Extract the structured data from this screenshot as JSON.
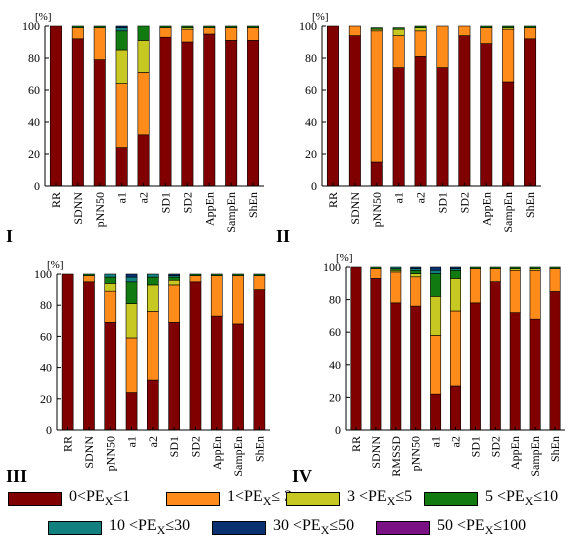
{
  "colors": [
    "#800000",
    "#ff8c1a",
    "#c8c823",
    "#117a11",
    "#138080",
    "#0b3170",
    "#7b1283"
  ],
  "legend": [
    {
      "pre": "0<PE",
      "sub": "X",
      "post": "≤1"
    },
    {
      "pre": "1<PE",
      "sub": "X",
      "post": "≤ 3"
    },
    {
      "pre": "3 <PE",
      "sub": "X",
      "post": "≤5"
    },
    {
      "pre": "5 <PE",
      "sub": "X",
      "post": "≤10"
    },
    {
      "pre": "10 <PE",
      "sub": "X",
      "post": "≤30"
    },
    {
      "pre": "30 <PE",
      "sub": "X",
      "post": "≤50"
    },
    {
      "pre": "50 <PE",
      "sub": "X",
      "post": "≤100"
    }
  ],
  "panel_labels": [
    "I",
    "II",
    "III",
    "IV"
  ],
  "chart_data": [
    {
      "type": "bar",
      "stacked": true,
      "unit_label": "[%]",
      "ylim": [
        0,
        100
      ],
      "yticks": [
        0,
        20,
        40,
        60,
        80,
        100
      ],
      "categories": [
        "RR",
        "SDNN",
        "pNN50",
        "a1",
        "a2",
        "SD1",
        "SD2",
        "AppEn",
        "SampEn",
        "ShEn"
      ],
      "series": [
        {
          "values": [
            100,
            92,
            79,
            24,
            32,
            93,
            90,
            95,
            91,
            91
          ]
        },
        {
          "values": [
            0,
            7,
            20,
            40,
            39,
            6,
            8,
            4,
            8,
            8
          ]
        },
        {
          "values": [
            0,
            0,
            0,
            21,
            20,
            0,
            1,
            0,
            0,
            0
          ]
        },
        {
          "values": [
            0,
            1,
            1,
            12,
            9,
            1,
            1,
            1,
            1,
            1
          ]
        },
        {
          "values": [
            0,
            0,
            0,
            2,
            0,
            0,
            0,
            0,
            0,
            0
          ]
        },
        {
          "values": [
            0,
            0,
            0,
            1,
            0,
            0,
            0,
            0,
            0,
            0
          ]
        },
        {
          "values": [
            0,
            0,
            0,
            0,
            0,
            0,
            0,
            0,
            0,
            0
          ]
        }
      ]
    },
    {
      "type": "bar",
      "stacked": true,
      "unit_label": "[%]",
      "ylim": [
        0,
        100
      ],
      "yticks": [
        0,
        20,
        40,
        60,
        80,
        100
      ],
      "categories": [
        "RR",
        "SDNN",
        "pNN50",
        "a1",
        "a2",
        "SD1",
        "SD2",
        "AppEn",
        "SampEn",
        "ShEn"
      ],
      "series": [
        {
          "values": [
            100,
            94,
            15,
            74,
            81,
            74,
            94,
            89,
            65,
            92
          ]
        },
        {
          "values": [
            0,
            6,
            82,
            20,
            16,
            26,
            6,
            10,
            33,
            7
          ]
        },
        {
          "values": [
            0,
            0,
            1,
            4,
            2,
            0,
            0,
            0,
            1,
            0
          ]
        },
        {
          "values": [
            0,
            0,
            1,
            1,
            1,
            0,
            0,
            1,
            1,
            1
          ]
        },
        {
          "values": [
            0,
            0,
            0,
            0,
            0,
            0,
            0,
            0,
            0,
            0
          ]
        },
        {
          "values": [
            0,
            0,
            0,
            0,
            0,
            0,
            0,
            0,
            0,
            0
          ]
        },
        {
          "values": [
            0,
            0,
            0,
            0,
            0,
            0,
            0,
            0,
            0,
            0
          ]
        }
      ]
    },
    {
      "type": "bar",
      "stacked": true,
      "unit_label": "[%]",
      "ylim": [
        0,
        100
      ],
      "yticks": [
        0,
        20,
        40,
        60,
        80,
        100
      ],
      "categories": [
        "RR",
        "SDNN",
        "pNN50",
        "a1",
        "a2",
        "SD1",
        "SD2",
        "AppEn",
        "SampEn",
        "ShEn"
      ],
      "series": [
        {
          "values": [
            100,
            95,
            69,
            24,
            32,
            69,
            95,
            73,
            68,
            90
          ]
        },
        {
          "values": [
            0,
            4,
            20,
            35,
            44,
            24,
            4,
            26,
            31,
            9
          ]
        },
        {
          "values": [
            0,
            0,
            5,
            22,
            17,
            3,
            0,
            0,
            0,
            0
          ]
        },
        {
          "values": [
            0,
            1,
            4,
            14,
            5,
            2,
            1,
            1,
            1,
            1
          ]
        },
        {
          "values": [
            0,
            0,
            2,
            3,
            2,
            1,
            0,
            0,
            0,
            0
          ]
        },
        {
          "values": [
            0,
            0,
            0,
            2,
            0,
            1,
            0,
            0,
            0,
            0
          ]
        },
        {
          "values": [
            0,
            0,
            0,
            0,
            0,
            0,
            0,
            0,
            0,
            0
          ]
        }
      ]
    },
    {
      "type": "bar",
      "stacked": true,
      "unit_label": "[%]",
      "ylim": [
        0,
        100
      ],
      "yticks": [
        0,
        20,
        40,
        60,
        80,
        100
      ],
      "categories": [
        "RR",
        "SDNN",
        "RMSSD",
        "pNN50",
        "a1",
        "a2",
        "SD1",
        "SD2",
        "AppEn",
        "SampEn",
        "ShEn"
      ],
      "series": [
        {
          "values": [
            100,
            93,
            78,
            76,
            22,
            27,
            78,
            91,
            72,
            68,
            85
          ]
        },
        {
          "values": [
            0,
            6,
            19,
            18,
            36,
            46,
            21,
            8,
            26,
            30,
            14
          ]
        },
        {
          "values": [
            0,
            0,
            1,
            2,
            24,
            20,
            0,
            0,
            1,
            1,
            0
          ]
        },
        {
          "values": [
            0,
            1,
            1,
            2,
            14,
            5,
            1,
            1,
            1,
            1,
            1
          ]
        },
        {
          "values": [
            0,
            0,
            1,
            1,
            2,
            1,
            0,
            0,
            0,
            0,
            0
          ]
        },
        {
          "values": [
            0,
            0,
            0,
            1,
            2,
            1,
            0,
            0,
            0,
            0,
            0
          ]
        },
        {
          "values": [
            0,
            0,
            0,
            0,
            0,
            0,
            0,
            0,
            0,
            0,
            0
          ]
        }
      ]
    }
  ]
}
